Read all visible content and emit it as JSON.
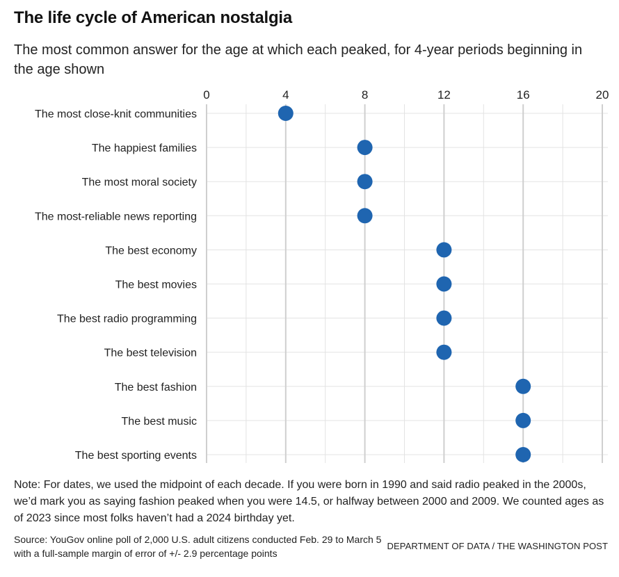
{
  "title": "The life cycle of American nostalgia",
  "subtitle": "The most common answer for the age at which each peaked, for 4-year periods beginning in the age shown",
  "note": "Note: For dates, we used the midpoint of each decade. If you were born in 1990 and said radio peaked in the 2000s, we’d mark you as saying fashion peaked when you were 14.5, or halfway between 2000 and 2009. We counted ages as of 2023 since most folks haven’t had a 2024 birthday yet.",
  "source": "Source: YouGov online poll of 2,000 U.S. adult citizens conducted Feb. 29 to March 5 with a full-sample margin of error of +/- 2.9 percentage points",
  "credit": "DEPARTMENT OF DATA / THE WASHINGTON POST",
  "colors": {
    "dot": "#1f65b0",
    "grid": "#e3e3e3",
    "major_grid": "#cfcfcf"
  },
  "chart_data": {
    "type": "scatter",
    "xlim": [
      0,
      20
    ],
    "xticks": [
      0,
      4,
      8,
      12,
      16,
      20
    ],
    "axis_position": "top",
    "grid": true,
    "categories": [
      "The most close-knit communities",
      "The happiest families",
      "The most moral society",
      "The most-reliable news reporting",
      "The best economy",
      "The best movies",
      "The best radio programming",
      "The best television",
      "The best fashion",
      "The best music",
      "The best sporting events"
    ],
    "values": [
      4,
      8,
      8,
      8,
      12,
      12,
      12,
      12,
      16,
      16,
      16
    ]
  }
}
